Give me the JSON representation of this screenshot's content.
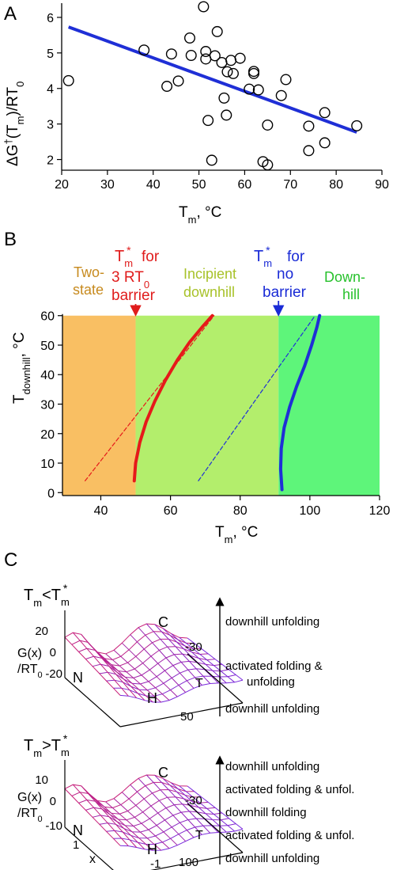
{
  "chart_data": [
    {
      "panel": "A",
      "type": "scatter",
      "xlabel_main": "T",
      "xlabel_sub": "m",
      "xlabel_rest": ", °C",
      "ylabel_main": "ΔG",
      "ylabel_sup": "†",
      "ylabel_mid": "(T",
      "ylabel_sub": "m",
      "ylabel_end": ")/RT",
      "ylabel_sub2": "0",
      "xlim": [
        20,
        90
      ],
      "ylim": [
        1.7,
        6.4
      ],
      "xticks": [
        20,
        30,
        40,
        50,
        60,
        70,
        80,
        90
      ],
      "yticks": [
        2,
        3,
        4,
        5,
        6
      ],
      "series": [
        {
          "values": [
            [
              21.5,
              4.22
            ],
            [
              38,
              5.08
            ],
            [
              43,
              4.06
            ],
            [
              44,
              4.97
            ],
            [
              45.5,
              4.21
            ],
            [
              48,
              5.42
            ],
            [
              48.3,
              4.93
            ],
            [
              51,
              6.3
            ],
            [
              51.5,
              5.04
            ],
            [
              51.5,
              4.83
            ],
            [
              52,
              3.1
            ],
            [
              52.8,
              1.98
            ],
            [
              53.5,
              4.92
            ],
            [
              54,
              5.6
            ],
            [
              55,
              4.73
            ],
            [
              55.5,
              3.73
            ],
            [
              56,
              3.25
            ],
            [
              56.2,
              4.47
            ],
            [
              57,
              4.79
            ],
            [
              57.5,
              4.42
            ],
            [
              59,
              4.85
            ],
            [
              61,
              3.98
            ],
            [
              62,
              4.48
            ],
            [
              62,
              4.42
            ],
            [
              63,
              3.96
            ],
            [
              64,
              1.94
            ],
            [
              65,
              2.97
            ],
            [
              65,
              1.85
            ],
            [
              68,
              3.8
            ],
            [
              69,
              4.25
            ],
            [
              74,
              2.94
            ],
            [
              74,
              2.25
            ],
            [
              77.5,
              3.32
            ],
            [
              77.5,
              2.47
            ],
            [
              84.5,
              2.95
            ]
          ]
        }
      ],
      "fit_line": {
        "x": [
          21.5,
          84.5
        ],
        "y": [
          5.73,
          2.77
        ],
        "color": "#1f2fd6"
      }
    },
    {
      "panel": "B",
      "type": "line",
      "xlabel_main": "T",
      "xlabel_sub": "m",
      "xlabel_rest": ", °C",
      "ylabel_main": "T",
      "ylabel_sub": "downhill",
      "ylabel_rest": ", °C",
      "xlim": [
        29,
        120
      ],
      "ylim": [
        -1,
        61
      ],
      "xticks": [
        40,
        60,
        80,
        100,
        120
      ],
      "yticks": [
        0,
        10,
        20,
        30,
        40,
        50,
        60
      ],
      "regions": [
        {
          "label1": "Two-",
          "label2": "state",
          "from": 29,
          "to": 50,
          "color": "#f9bf63",
          "label_color": "#c78a1e"
        },
        {
          "label1": "Incipient",
          "label2": "downhill",
          "from": 50,
          "to": 91,
          "color": "#b3ee6c",
          "label_color": "#a8c22a"
        },
        {
          "label1": "Down-",
          "label2": "hill",
          "from": 91,
          "to": 120,
          "color": "#5ef57a",
          "label_color": "#27c12c"
        }
      ],
      "markers": [
        {
          "sym": "T",
          "sub": "m",
          "sup": "*",
          "for": "for",
          "line2": "3 RT",
          "line2sub": "0",
          "line3": "barrier",
          "x": 50,
          "color": "#e01c1c"
        },
        {
          "sym": "T",
          "sub": "m",
          "sup": "*",
          "for": "for",
          "line2": "no",
          "line2sub": "",
          "line3": "barrier",
          "x": 91,
          "color": "#1a2bd6"
        }
      ],
      "series": [
        {
          "color": "#e61a1a",
          "style": "solid",
          "x": [
            49.6,
            50.0,
            51.2,
            53.0,
            55.5,
            58.5,
            62.0,
            65.5,
            69.0,
            72.0
          ],
          "y": [
            4,
            10,
            17,
            24,
            31,
            38,
            45,
            51,
            56,
            60
          ]
        },
        {
          "color": "#e61a1a",
          "style": "dashed",
          "x": [
            35.5,
            72.5
          ],
          "y": [
            4,
            60
          ]
        },
        {
          "color": "#1f2fd6",
          "style": "solid",
          "x": [
            92.0,
            91.6,
            91.8,
            92.6,
            94.2,
            96.2,
            98.5,
            100.5,
            102.0,
            102.8
          ],
          "y": [
            1,
            8,
            15,
            22,
            29,
            36,
            43,
            50,
            56,
            60
          ]
        },
        {
          "color": "#1f2fd6",
          "style": "dashed",
          "x": [
            68,
            101.5
          ],
          "y": [
            4,
            60
          ]
        }
      ]
    }
  ],
  "panel_labels": {
    "a": "A",
    "b": "B",
    "c": "C"
  },
  "panel_c": {
    "landscape1": {
      "cond_main": "T",
      "cond_sub": "m",
      "cond_op": "<T",
      "cond_sub2": "m",
      "cond_sup": "*",
      "zlabel_top": "G(x)",
      "zlabel_bot": "/RT",
      "zlabel_sub": "0",
      "zticks": [
        "20",
        "0",
        "-20"
      ],
      "t_label": "T",
      "t_ticks": [
        "-30",
        "50"
      ],
      "wells": {
        "n": "N",
        "c": "C",
        "h": "H"
      },
      "regimes": [
        "downhill unfolding",
        "activated folding &",
        "unfolding",
        "downhill unfolding"
      ]
    },
    "landscape2": {
      "cond_main": "T",
      "cond_sub": "m",
      "cond_op": ">T",
      "cond_sub2": "m",
      "cond_sup": "*",
      "zlabel_top": "G(x)",
      "zlabel_bot": "/RT",
      "zlabel_sub": "0",
      "zticks": [
        "10",
        "0",
        "-10"
      ],
      "t_label": "T",
      "t_ticks": [
        "-30",
        "100"
      ],
      "x_label": "x",
      "x_ticks": [
        "1",
        "-1"
      ],
      "wells": {
        "n": "N",
        "c": "C",
        "h": "H"
      },
      "regimes": [
        "downhill unfolding",
        "activated folding & unfol.",
        "downhill folding",
        "activated folding & unfol.",
        "downhill unfolding"
      ]
    }
  }
}
